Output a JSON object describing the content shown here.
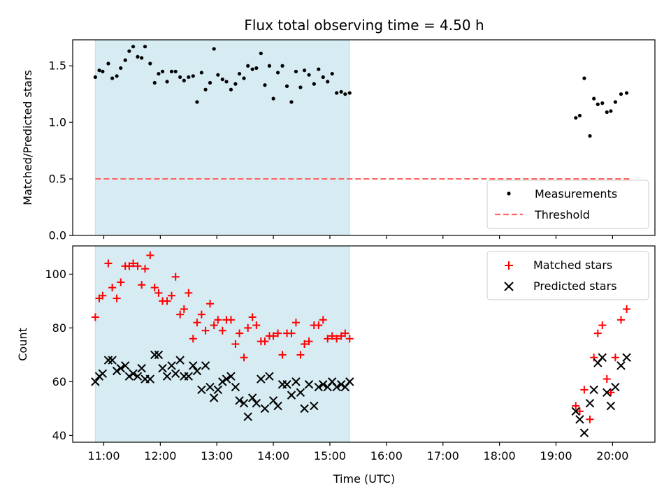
{
  "figure": {
    "title": "Flux total observing time = 4.50 h",
    "xlabel": "Time (UTC)",
    "top_ylabel": "Matched/Predicted stars",
    "bottom_ylabel": "Count",
    "legend_top": {
      "measurements": "Measurements",
      "threshold": "Threshold"
    },
    "legend_bottom": {
      "matched": "Matched stars",
      "predicted": "Predicted stars"
    }
  },
  "colors": {
    "shade": "#add8e6",
    "measurement": "#000000",
    "threshold": "#ff6666",
    "matched": "#ff0000",
    "predicted": "#000000"
  },
  "chart_data": [
    {
      "type": "scatter",
      "title": "Flux total observing time = 4.50 h",
      "ylabel": "Matched/Predicted stars",
      "xlim": [
        10.45,
        20.75
      ],
      "ylim": [
        0,
        1.73
      ],
      "y_ticks": [
        0.0,
        0.5,
        1.0,
        1.5
      ],
      "y_tick_labels": [
        "0.0",
        "0.5",
        "1.0",
        "1.5"
      ],
      "shaded_span": [
        10.85,
        15.35
      ],
      "threshold": {
        "name": "Threshold",
        "y": 0.5,
        "x": [
          10.85,
          20.3
        ],
        "style": "dashed"
      },
      "legend_placement": "lower-right",
      "series": [
        {
          "name": "Measurements",
          "marker": "dot",
          "x": [
            10.85,
            10.92,
            10.98,
            11.08,
            11.15,
            11.23,
            11.3,
            11.38,
            11.45,
            11.52,
            11.6,
            11.67,
            11.73,
            11.82,
            11.9,
            11.97,
            12.04,
            12.12,
            12.2,
            12.27,
            12.35,
            12.42,
            12.5,
            12.58,
            12.65,
            12.73,
            12.8,
            12.88,
            12.95,
            13.02,
            13.1,
            13.17,
            13.25,
            13.33,
            13.4,
            13.48,
            13.55,
            13.63,
            13.7,
            13.78,
            13.85,
            13.93,
            14.0,
            14.08,
            14.16,
            14.24,
            14.32,
            14.4,
            14.48,
            14.55,
            14.63,
            14.72,
            14.8,
            14.88,
            14.96,
            15.04,
            15.12,
            15.2,
            15.27,
            15.35,
            19.35,
            19.42,
            19.5,
            19.6,
            19.67,
            19.74,
            19.82,
            19.9,
            19.97,
            20.05,
            20.15,
            20.25
          ],
          "y": [
            1.4,
            1.46,
            1.45,
            1.52,
            1.39,
            1.41,
            1.48,
            1.55,
            1.63,
            1.67,
            1.58,
            1.57,
            1.67,
            1.52,
            1.35,
            1.43,
            1.45,
            1.36,
            1.45,
            1.45,
            1.4,
            1.37,
            1.4,
            1.41,
            1.18,
            1.44,
            1.29,
            1.35,
            1.65,
            1.42,
            1.38,
            1.36,
            1.29,
            1.34,
            1.43,
            1.39,
            1.5,
            1.47,
            1.48,
            1.61,
            1.33,
            1.5,
            1.21,
            1.44,
            1.5,
            1.32,
            1.18,
            1.45,
            1.31,
            1.46,
            1.42,
            1.34,
            1.47,
            1.4,
            1.36,
            1.43,
            1.26,
            1.27,
            1.25,
            1.26,
            1.04,
            1.06,
            1.39,
            0.88,
            1.21,
            1.16,
            1.17,
            1.09,
            1.1,
            1.18,
            1.25,
            1.26
          ]
        }
      ]
    },
    {
      "type": "scatter",
      "xlabel": "Time (UTC)",
      "ylabel": "Count",
      "xlim": [
        10.45,
        20.75
      ],
      "ylim": [
        37.5,
        110.5
      ],
      "x_ticks": [
        11,
        12,
        13,
        14,
        15,
        16,
        17,
        18,
        19,
        20
      ],
      "x_tick_labels": [
        "11:00",
        "12:00",
        "13:00",
        "14:00",
        "15:00",
        "16:00",
        "17:00",
        "18:00",
        "19:00",
        "20:00"
      ],
      "y_ticks": [
        40,
        60,
        80,
        100
      ],
      "y_tick_labels": [
        "40",
        "60",
        "80",
        "100"
      ],
      "shaded_span": [
        10.85,
        15.35
      ],
      "legend_placement": "upper-right",
      "series": [
        {
          "name": "Matched stars",
          "marker": "plus",
          "x": [
            10.85,
            10.92,
            10.98,
            11.08,
            11.15,
            11.23,
            11.3,
            11.38,
            11.45,
            11.52,
            11.6,
            11.67,
            11.73,
            11.82,
            11.9,
            11.97,
            12.04,
            12.12,
            12.2,
            12.27,
            12.35,
            12.42,
            12.5,
            12.58,
            12.65,
            12.73,
            12.8,
            12.88,
            12.95,
            13.02,
            13.1,
            13.17,
            13.25,
            13.33,
            13.4,
            13.48,
            13.55,
            13.63,
            13.7,
            13.78,
            13.85,
            13.93,
            14.0,
            14.08,
            14.16,
            14.24,
            14.32,
            14.4,
            14.48,
            14.55,
            14.63,
            14.72,
            14.8,
            14.88,
            14.96,
            15.04,
            15.12,
            15.2,
            15.27,
            15.35,
            19.35,
            19.42,
            19.5,
            19.6,
            19.67,
            19.74,
            19.82,
            19.9,
            19.97,
            20.05,
            20.15,
            20.25
          ],
          "y": [
            84,
            91,
            92,
            104,
            95,
            91,
            97,
            103,
            103,
            104,
            103,
            96,
            102,
            107,
            95,
            93,
            90,
            90,
            92,
            99,
            85,
            87,
            93,
            76,
            82,
            85,
            79,
            89,
            81,
            83,
            79,
            83,
            83,
            74,
            78,
            69,
            80,
            84,
            81,
            75,
            75,
            77,
            77,
            78,
            70,
            78,
            78,
            82,
            70,
            74,
            75,
            81,
            81,
            83,
            76,
            77,
            76,
            77,
            78,
            76,
            51,
            49,
            57,
            46,
            69,
            78,
            81,
            61,
            56,
            69,
            83,
            87
          ]
        },
        {
          "name": "Predicted stars",
          "marker": "x",
          "x": [
            10.85,
            10.92,
            10.98,
            11.08,
            11.15,
            11.23,
            11.3,
            11.38,
            11.45,
            11.52,
            11.6,
            11.67,
            11.73,
            11.82,
            11.9,
            11.97,
            12.04,
            12.12,
            12.2,
            12.27,
            12.35,
            12.42,
            12.5,
            12.58,
            12.65,
            12.73,
            12.8,
            12.88,
            12.95,
            13.02,
            13.1,
            13.17,
            13.25,
            13.33,
            13.4,
            13.48,
            13.55,
            13.63,
            13.7,
            13.78,
            13.85,
            13.93,
            14.0,
            14.08,
            14.16,
            14.24,
            14.32,
            14.4,
            14.48,
            14.55,
            14.63,
            14.72,
            14.8,
            14.88,
            14.96,
            15.04,
            15.12,
            15.2,
            15.27,
            15.35,
            19.35,
            19.42,
            19.5,
            19.6,
            19.67,
            19.74,
            19.82,
            19.9,
            19.97,
            20.05,
            20.15,
            20.25
          ],
          "y": [
            60,
            62,
            63,
            68,
            68,
            64,
            65,
            66,
            62,
            63,
            62,
            65,
            61,
            61,
            70,
            70,
            65,
            62,
            66,
            63,
            68,
            62,
            62,
            66,
            64,
            57,
            66,
            58,
            54,
            57,
            60,
            61,
            62,
            58,
            53,
            52,
            47,
            54,
            52,
            61,
            50,
            62,
            53,
            51,
            59,
            59,
            55,
            60,
            56,
            50,
            59,
            51,
            58,
            59,
            58,
            60,
            58,
            59,
            58,
            60,
            49,
            46,
            41,
            52,
            57,
            67,
            69,
            56,
            51,
            58,
            66,
            69
          ]
        }
      ]
    }
  ]
}
